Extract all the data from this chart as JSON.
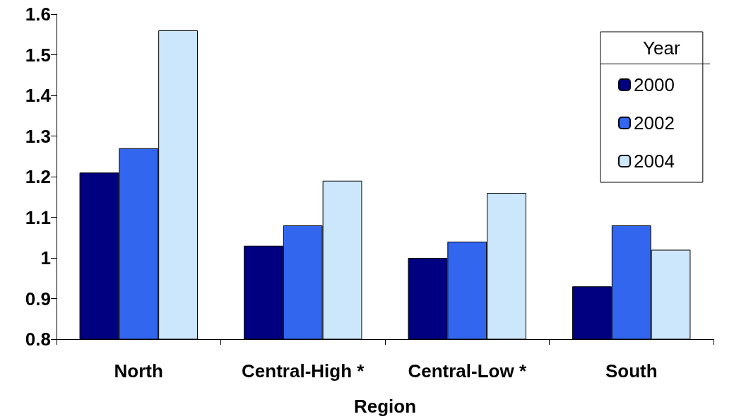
{
  "chart_data": {
    "type": "bar",
    "xlabel": "Region",
    "categories": [
      "North",
      "Central-High *",
      "Central-Low *",
      "South"
    ],
    "series": [
      {
        "name": "2000",
        "color": "#000080",
        "values": [
          1.21,
          1.03,
          1.0,
          0.93
        ]
      },
      {
        "name": "2002",
        "color": "#3366ee",
        "values": [
          1.27,
          1.08,
          1.04,
          1.08
        ]
      },
      {
        "name": "2004",
        "color": "#cce6fc",
        "values": [
          1.56,
          1.19,
          1.16,
          1.02
        ]
      }
    ],
    "legend_title": "Year",
    "legend": "top right",
    "ylim": [
      0.8,
      1.6
    ],
    "yticks": [
      0.8,
      0.9,
      1,
      1.1,
      1.2,
      1.3,
      1.4,
      1.5,
      1.6
    ],
    "grid": false
  }
}
